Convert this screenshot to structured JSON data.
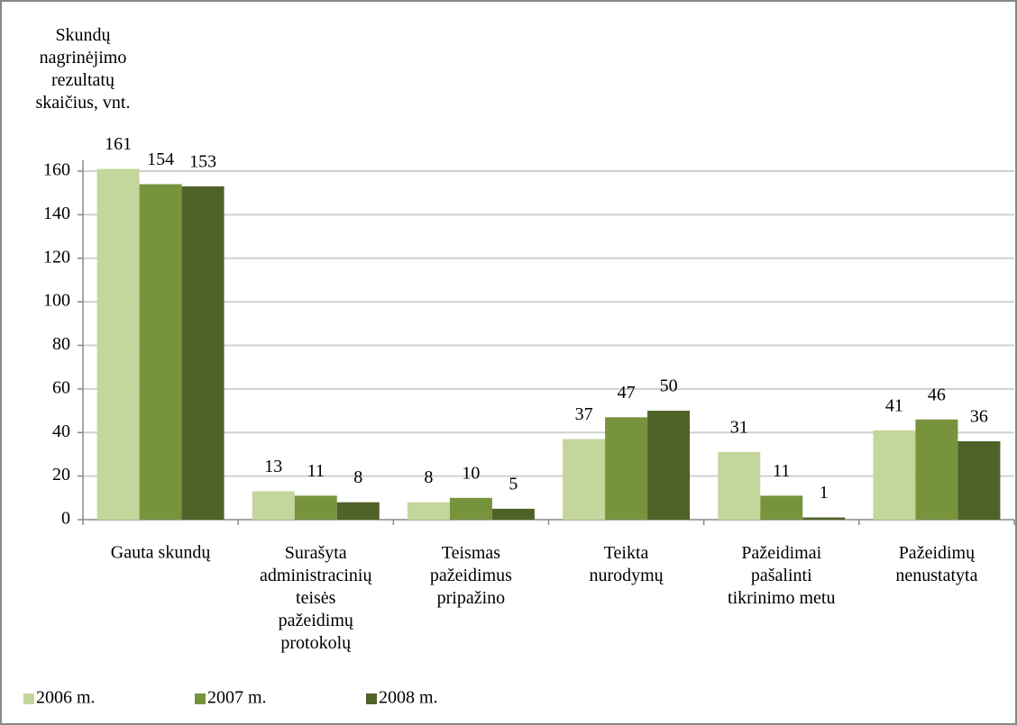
{
  "chart_data": {
    "type": "bar",
    "y_label": "Skundų\nnagrinėjimo\nrezultatų\nskaičius, vnt.",
    "categories": [
      "Gauta skundų",
      "Surašyta\nadministracinių\nteisės\npažeidimų\nprotokolų",
      "Teismas\npažeidimus\npripažino",
      "Teikta\nnurodymų",
      "Pažeidimai\npašalinti\ntikrinimo metu",
      "Pažeidimų\nnenustatyta"
    ],
    "series": [
      {
        "name": "2006 m.",
        "color": "#c3d69b",
        "values": [
          161,
          13,
          8,
          37,
          31,
          41
        ]
      },
      {
        "name": "2007 m.",
        "color": "#77933c",
        "values": [
          154,
          11,
          10,
          47,
          11,
          46
        ]
      },
      {
        "name": "2008 m.",
        "color": "#4f6228",
        "values": [
          153,
          8,
          5,
          50,
          1,
          36
        ]
      }
    ],
    "ylim": [
      0,
      160
    ],
    "yticks": [
      0,
      20,
      40,
      60,
      80,
      100,
      120,
      140,
      160
    ],
    "grid": true,
    "legend": "bottom-left"
  }
}
